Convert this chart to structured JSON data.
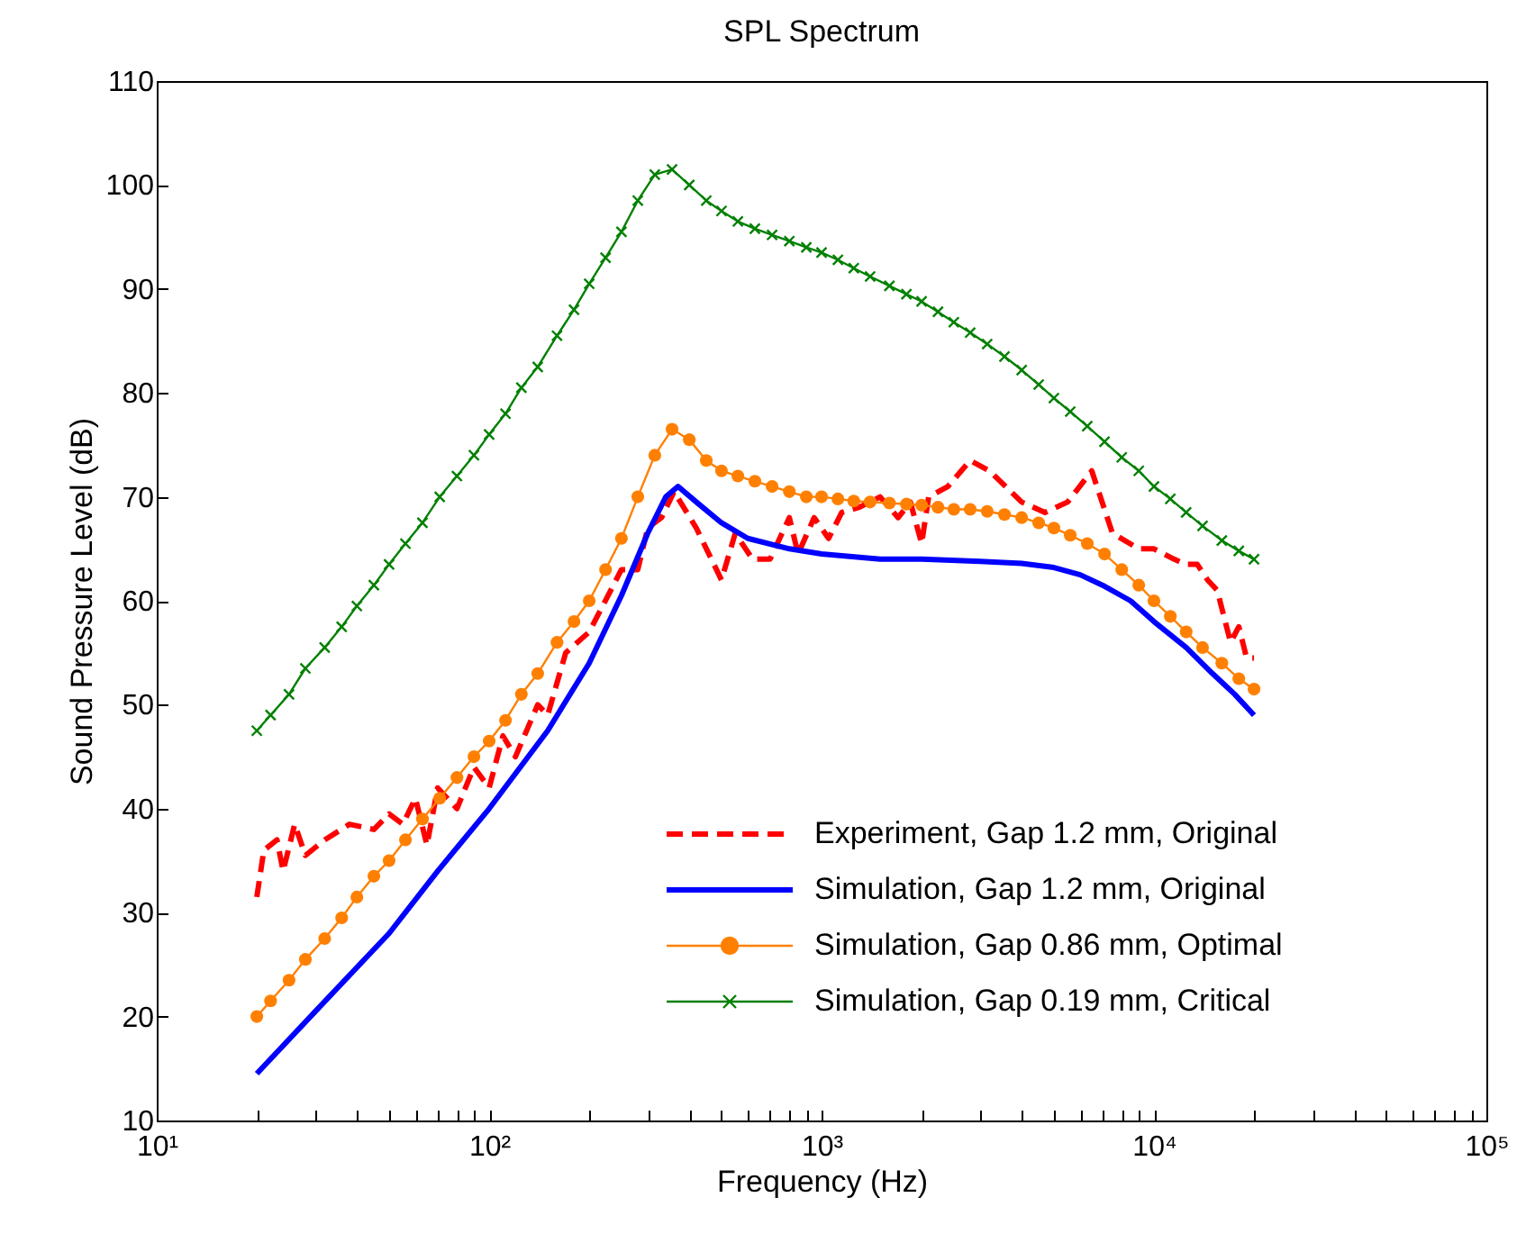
{
  "chart_data": {
    "type": "line",
    "title": "SPL Spectrum",
    "xlabel": "Frequency (Hz)",
    "ylabel": "Sound Pressure Level (dB)",
    "log": "x",
    "xlim": [
      10,
      100000
    ],
    "xticks": [
      {
        "value": 10,
        "label": "10¹"
      },
      {
        "value": 20,
        "label": null
      },
      {
        "value": 30,
        "label": null
      },
      {
        "value": 40,
        "label": null
      },
      {
        "value": 50,
        "label": null
      },
      {
        "value": 60,
        "label": null
      },
      {
        "value": 70,
        "label": null
      },
      {
        "value": 80,
        "label": null
      },
      {
        "value": 90,
        "label": null
      },
      {
        "value": 100,
        "label": "10²"
      },
      {
        "value": 200,
        "label": null
      },
      {
        "value": 300,
        "label": null
      },
      {
        "value": 400,
        "label": null
      },
      {
        "value": 500,
        "label": null
      },
      {
        "value": 600,
        "label": null
      },
      {
        "value": 700,
        "label": null
      },
      {
        "value": 800,
        "label": null
      },
      {
        "value": 900,
        "label": null
      },
      {
        "value": 1000,
        "label": "10³"
      },
      {
        "value": 2000,
        "label": null
      },
      {
        "value": 3000,
        "label": null
      },
      {
        "value": 4000,
        "label": null
      },
      {
        "value": 5000,
        "label": null
      },
      {
        "value": 6000,
        "label": null
      },
      {
        "value": 7000,
        "label": null
      },
      {
        "value": 8000,
        "label": null
      },
      {
        "value": 9000,
        "label": null
      },
      {
        "value": 10000,
        "label": "10⁴"
      },
      {
        "value": 20000,
        "label": null
      },
      {
        "value": 30000,
        "label": null
      },
      {
        "value": 40000,
        "label": null
      },
      {
        "value": 50000,
        "label": null
      },
      {
        "value": 60000,
        "label": null
      },
      {
        "value": 70000,
        "label": null
      },
      {
        "value": 80000,
        "label": null
      },
      {
        "value": 90000,
        "label": null
      },
      {
        "value": 100000,
        "label": "10⁵"
      }
    ],
    "ylim": [
      10,
      110
    ],
    "yticks": [
      10,
      20,
      30,
      40,
      50,
      60,
      70,
      80,
      90,
      100,
      110
    ],
    "grid": false,
    "legend": "bottom right",
    "series": [
      {
        "name": "Experiment, Gap 1.2 mm, Original",
        "color": "#ff0000",
        "line_style": "dashed",
        "marker": "none",
        "x": [
          20,
          21,
          23,
          24,
          26,
          28,
          32,
          38,
          45,
          50,
          55,
          60,
          65,
          70,
          80,
          90,
          100,
          110,
          120,
          140,
          150,
          170,
          200,
          250,
          280,
          300,
          330,
          360,
          420,
          500,
          550,
          620,
          700,
          800,
          850,
          950,
          1050,
          1150,
          1300,
          1500,
          1700,
          1850,
          2000,
          2100,
          2400,
          2800,
          3200,
          4000,
          4700,
          5500,
          6500,
          7500,
          9000,
          10000,
          11500,
          12500,
          13500,
          14500,
          15500,
          17000,
          18000,
          19000,
          20000
        ],
        "values": [
          31.5,
          36,
          37,
          34,
          38.5,
          35.5,
          37,
          38.5,
          38,
          39.5,
          38.5,
          41,
          36.5,
          42,
          40,
          44,
          42,
          47,
          45,
          50,
          49,
          55,
          57,
          63,
          63,
          67,
          68,
          70.5,
          67,
          62,
          66.5,
          64,
          64,
          68,
          64.5,
          68,
          66,
          68.5,
          69,
          70,
          68,
          69.5,
          65.5,
          70,
          71,
          73.5,
          72.5,
          69.5,
          68.5,
          69.5,
          72.5,
          66.5,
          65,
          65,
          64,
          63.5,
          63.5,
          62,
          61,
          56,
          57.5,
          54.5,
          54.5
        ]
      },
      {
        "name": "Simulation, Gap 1.2 mm, Original",
        "color": "#0000ff",
        "line_style": "solid",
        "marker": "none",
        "x": [
          20,
          30,
          50,
          70,
          100,
          150,
          200,
          250,
          300,
          340,
          370,
          420,
          500,
          600,
          800,
          1000,
          1500,
          2000,
          3000,
          4000,
          5000,
          6000,
          7000,
          8500,
          10000,
          12500,
          15000,
          17500,
          20000
        ],
        "values": [
          14.5,
          20.5,
          28,
          34,
          40,
          47.5,
          54,
          60.5,
          66.5,
          70,
          71,
          69.5,
          67.5,
          66,
          65,
          64.5,
          64,
          64,
          63.8,
          63.6,
          63.2,
          62.5,
          61.5,
          60,
          58,
          55.5,
          53,
          51,
          49
        ]
      },
      {
        "name": "Simulation, Gap 0.86 mm, Optimal",
        "color": "#ff8000",
        "line_style": "solid",
        "marker": "circle",
        "x": [
          20,
          22,
          25,
          28,
          32,
          36,
          40,
          45,
          50,
          56,
          63,
          71,
          80,
          90,
          100,
          112,
          125,
          140,
          160,
          180,
          200,
          224,
          250,
          280,
          315,
          355,
          400,
          450,
          500,
          560,
          630,
          710,
          800,
          900,
          1000,
          1120,
          1250,
          1400,
          1600,
          1800,
          2000,
          2240,
          2500,
          2800,
          3150,
          3550,
          4000,
          4500,
          5000,
          5600,
          6300,
          7100,
          8000,
          9000,
          10000,
          11200,
          12500,
          14000,
          16000,
          18000,
          20000
        ],
        "values": [
          20,
          21.5,
          23.5,
          25.5,
          27.5,
          29.5,
          31.5,
          33.5,
          35,
          37,
          39,
          41,
          43,
          45,
          46.5,
          48.5,
          51,
          53,
          56,
          58,
          60,
          63,
          66,
          70,
          74,
          76.5,
          75.5,
          73.5,
          72.5,
          72,
          71.5,
          71,
          70.5,
          70,
          70,
          69.8,
          69.6,
          69.5,
          69.4,
          69.3,
          69.2,
          69,
          68.8,
          68.8,
          68.6,
          68.3,
          68,
          67.5,
          67,
          66.3,
          65.5,
          64.5,
          63,
          61.5,
          60,
          58.5,
          57,
          55.5,
          54,
          52.5,
          51.5
        ]
      },
      {
        "name": "Simulation, Gap 0.19 mm, Critical",
        "color": "#008000",
        "line_style": "solid",
        "marker": "cross",
        "x": [
          20,
          22,
          25,
          28,
          32,
          36,
          40,
          45,
          50,
          56,
          63,
          71,
          80,
          90,
          100,
          112,
          125,
          140,
          160,
          180,
          200,
          224,
          250,
          280,
          315,
          355,
          400,
          450,
          500,
          560,
          630,
          710,
          800,
          900,
          1000,
          1120,
          1250,
          1400,
          1600,
          1800,
          2000,
          2240,
          2500,
          2800,
          3150,
          3550,
          4000,
          4500,
          5000,
          5600,
          6300,
          7100,
          8000,
          9000,
          10000,
          11200,
          12500,
          14000,
          16000,
          18000,
          20000
        ],
        "values": [
          47.5,
          49,
          51,
          53.5,
          55.5,
          57.5,
          59.5,
          61.5,
          63.5,
          65.5,
          67.5,
          70,
          72,
          74,
          76,
          78,
          80.5,
          82.5,
          85.5,
          88,
          90.5,
          93,
          95.5,
          98.5,
          101,
          101.5,
          100,
          98.5,
          97.5,
          96.5,
          95.8,
          95.2,
          94.6,
          94,
          93.5,
          92.8,
          92,
          91.2,
          90.3,
          89.5,
          88.8,
          87.8,
          86.8,
          85.8,
          84.7,
          83.5,
          82.2,
          80.8,
          79.5,
          78.2,
          76.8,
          75.3,
          73.8,
          72.5,
          71,
          69.8,
          68.5,
          67.2,
          65.8,
          64.8,
          64
        ]
      }
    ]
  }
}
